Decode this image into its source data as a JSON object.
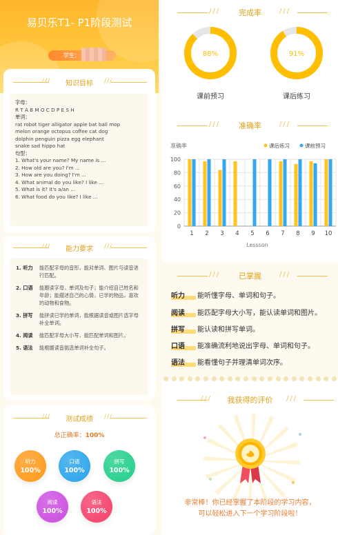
{
  "header": {
    "title": "易贝乐T1- P1阶段测试",
    "student_label": "学生："
  },
  "knowledge": {
    "title": "知识目标",
    "letters_label": "字母：",
    "letters": "R T A B M O C D P E S H",
    "words_label": "单词：",
    "words": [
      "rat robot tiger alligator apple bat ball mop",
      "melon orange octopus coffee cat dog",
      "dolphin penguin pizza egg elephant",
      "snake sad hippo hat"
    ],
    "sentences_label": "句型：",
    "sentences": [
      "1. What's your name? My name is ...",
      "2. How old are you? I'm ...",
      "3. How are you doing? I'm ...",
      "4. What animal do you like? I like ...",
      "5. What is it? It's a/an ...",
      "6. What food do you like? I like ..."
    ]
  },
  "ability": {
    "title": "能力要求",
    "items": [
      {
        "k": "1. 听力",
        "v": "能匹配字母的音形，能对单词、图片与读音进行匹配。"
      },
      {
        "k": "2. 口语",
        "v": "能跟读字母，单词及句子；能介绍自己姓名和年龄；能描述自己的心情，已学的物品，喜欢的动物和食物。"
      },
      {
        "k": "3. 拼写",
        "v": "能拼读已学的单词，能根据读音或图片选字母补全单词。"
      },
      {
        "k": "4. 阅读",
        "v": "能匹配字母大小写，能匹配单词和图片。"
      },
      {
        "k": "5. 语法",
        "v": "能根据读音挑选单词补全句子。"
      }
    ]
  },
  "results": {
    "title": "测试成绩",
    "total_label": "总正确率：",
    "total_value": "100%",
    "circles": [
      {
        "label": "听力",
        "value": "100%",
        "color": "#ff9a1a"
      },
      {
        "label": "口语",
        "value": "100%",
        "color": "#2aa4ec"
      },
      {
        "label": "拼写",
        "value": "100%",
        "color": "#21cf8a"
      },
      {
        "label": "阅读",
        "value": "100%",
        "color": "#cc4de0"
      },
      {
        "label": "语法",
        "value": "100%",
        "color": "#f4406a"
      }
    ]
  },
  "completion": {
    "title": "完成率",
    "items": [
      {
        "label": "课前预习",
        "value": "88%",
        "fraction": 0.88
      },
      {
        "label": "课后练习",
        "value": "91%",
        "fraction": 0.91
      }
    ],
    "color": "#ffbf00",
    "track": "#e6e6e6"
  },
  "chart_data": {
    "type": "bar",
    "title": "准确率",
    "ylabel": "准确率",
    "xlabel": "Lessson",
    "categories": [
      "1",
      "2",
      "3",
      "4",
      "5",
      "6",
      "7",
      "8",
      "9",
      "10"
    ],
    "ylim": [
      0,
      100
    ],
    "yticks": [
      "0",
      "20",
      "40",
      "60",
      "80",
      "100"
    ],
    "series": [
      {
        "name": "课后练习",
        "color": "#ffc21f",
        "values": [
          100,
          97,
          84,
          97,
          0,
          0,
          97,
          93,
          97,
          100
        ]
      },
      {
        "name": "课前预习",
        "color": "#34a7ee",
        "values": [
          100,
          100,
          100,
          0,
          100,
          100,
          100,
          100,
          94,
          100
        ]
      }
    ],
    "legend": "top-right",
    "grid": true
  },
  "mastered": {
    "title": "已掌握",
    "items": [
      {
        "k": "听力",
        "v": "能听懂字母、单词和句子。"
      },
      {
        "k": "阅读",
        "v": "能匹配字母大小写，能认读单词和图片。"
      },
      {
        "k": "拼写",
        "v": "能认读和拼写单词。"
      },
      {
        "k": "口语",
        "v": "能准确流利地说出字母、单词和句子。"
      },
      {
        "k": "语法",
        "v": "能看懂句子并理清单词次序。"
      }
    ]
  },
  "evaluation": {
    "title": "我获得的评价",
    "praise_line1": "非常棒！你已经掌握了本阶段的学习内容，",
    "praise_line2": "可以轻松进入下一个学习阶段啦！"
  }
}
